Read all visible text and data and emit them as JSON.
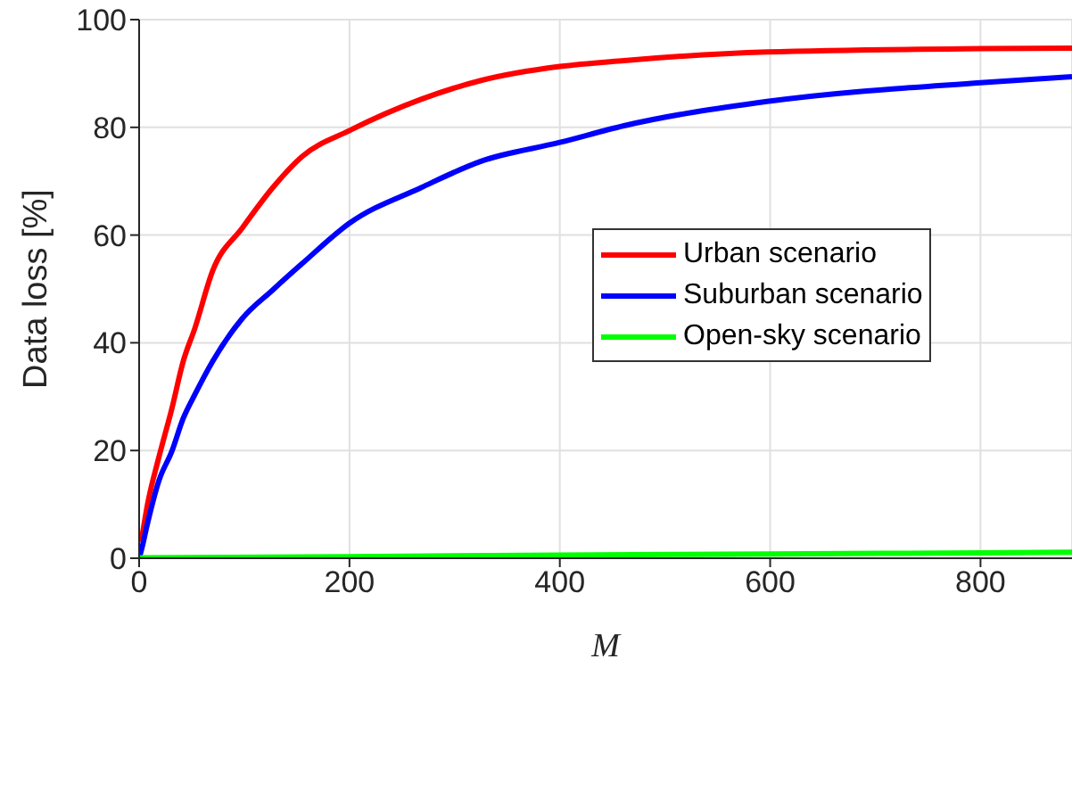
{
  "chart_data": {
    "type": "line",
    "xlabel": "M",
    "ylabel": "Data loss [%]",
    "xlim": [
      0,
      887
    ],
    "xticks": [
      0,
      200,
      400,
      600,
      800
    ],
    "ylim": [
      0,
      100
    ],
    "yticks": [
      0,
      20,
      40,
      60,
      80,
      100
    ],
    "grid": true,
    "legend": "right",
    "marker": "none",
    "line_style": "solid",
    "series": [
      {
        "name": "Urban scenario",
        "color": "#ff0000",
        "x": [
          2,
          8,
          19,
          31,
          42,
          53,
          70,
          98,
          127,
          155,
          200,
          268,
          325,
          400,
          461,
          597,
          800,
          887
        ],
        "values": [
          3,
          10,
          18.9,
          27.7,
          36.6,
          42.7,
          53.4,
          61.3,
          68.8,
          74.6,
          79.4,
          85.2,
          88.7,
          91.3,
          92.4,
          94.0,
          94.6,
          94.7
        ]
      },
      {
        "name": "Suburban scenario",
        "color": "#0000ff",
        "x": [
          0,
          2,
          8,
          19,
          31,
          42,
          53,
          70,
          98,
          127,
          155,
          200,
          268,
          325,
          400,
          461,
          597,
          800,
          887
        ],
        "values": [
          0,
          1.4,
          6.5,
          14.5,
          19.8,
          26,
          30.4,
          36.6,
          44.5,
          49.8,
          54.7,
          62.2,
          68.8,
          73.7,
          77.2,
          80.3,
          84.8,
          88.3,
          89.4
        ]
      },
      {
        "name": "Open-sky scenario",
        "color": "#00ff00",
        "x": [
          0,
          200,
          400,
          600,
          800,
          887
        ],
        "values": [
          0.1,
          0.3,
          0.6,
          0.8,
          1.0,
          1.1
        ]
      }
    ]
  }
}
